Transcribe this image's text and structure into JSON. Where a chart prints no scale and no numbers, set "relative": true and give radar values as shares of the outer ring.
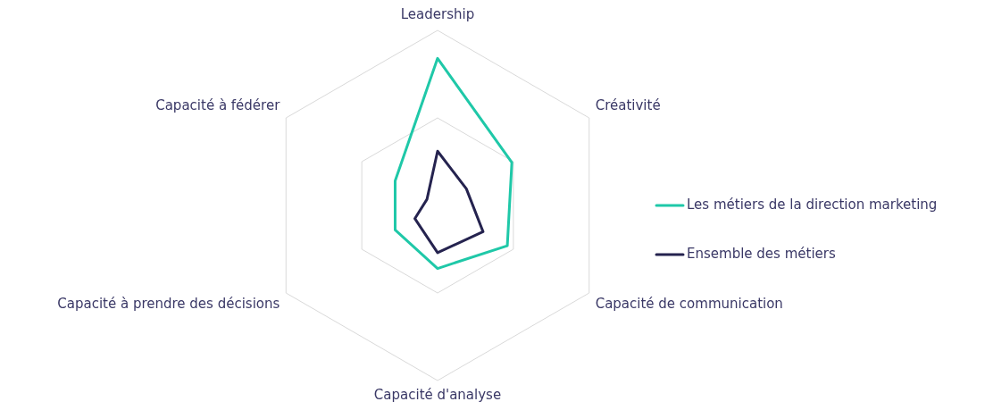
{
  "chart_data": {
    "type": "radar",
    "relative": true,
    "grid": true,
    "legend": "right",
    "categories": [
      "Leadership",
      "Créativité",
      "Capacité de communication",
      "Capacité d'analyse",
      "Capacité à prendre des décisions",
      "Capacité à fédérer"
    ],
    "series": [
      {
        "name": "Les métiers de la direction marketing",
        "color": "#1fc8a8",
        "values": [
          0.84,
          0.49,
          0.46,
          0.36,
          0.28,
          0.28
        ]
      },
      {
        "name": "Ensemble des métiers",
        "color": "#25234f",
        "values": [
          0.31,
          0.19,
          0.3,
          0.27,
          0.15,
          0.07
        ]
      }
    ]
  }
}
